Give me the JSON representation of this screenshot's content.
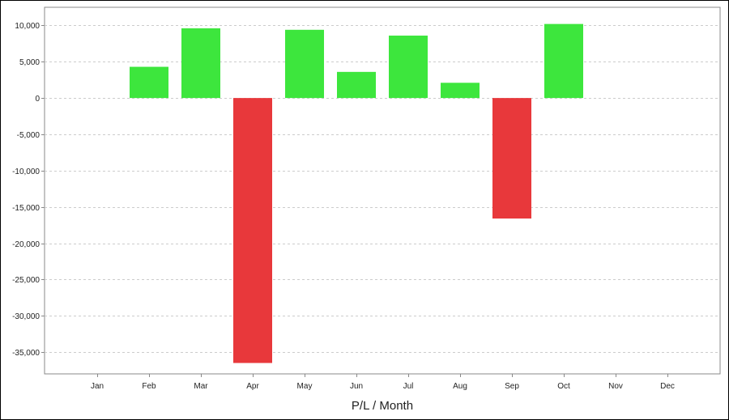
{
  "chart_data": {
    "type": "bar",
    "categories": [
      "Jan",
      "Feb",
      "Mar",
      "Apr",
      "May",
      "Jun",
      "Jul",
      "Aug",
      "Sep",
      "Oct",
      "Nov",
      "Dec"
    ],
    "values": [
      null,
      4300,
      9600,
      -36500,
      9400,
      3600,
      8600,
      2100,
      -16600,
      10200,
      null,
      null
    ],
    "xlabel": "P/L / Month",
    "ylabel": "",
    "ylim": [
      -38000,
      12500
    ],
    "yticks": [
      10000,
      5000,
      0,
      -5000,
      -10000,
      -15000,
      -20000,
      -25000,
      -30000,
      -35000
    ],
    "ytick_labels": [
      "10,000",
      "5,000",
      "0",
      "-5,000",
      "-10,000",
      "-15,000",
      "-20,000",
      "-25,000",
      "-30,000",
      "-35,000"
    ],
    "grid": true,
    "colors": {
      "positive": "#3de63d",
      "negative": "#e8383b",
      "grid": "#cccccc",
      "axis": "#888888"
    }
  }
}
